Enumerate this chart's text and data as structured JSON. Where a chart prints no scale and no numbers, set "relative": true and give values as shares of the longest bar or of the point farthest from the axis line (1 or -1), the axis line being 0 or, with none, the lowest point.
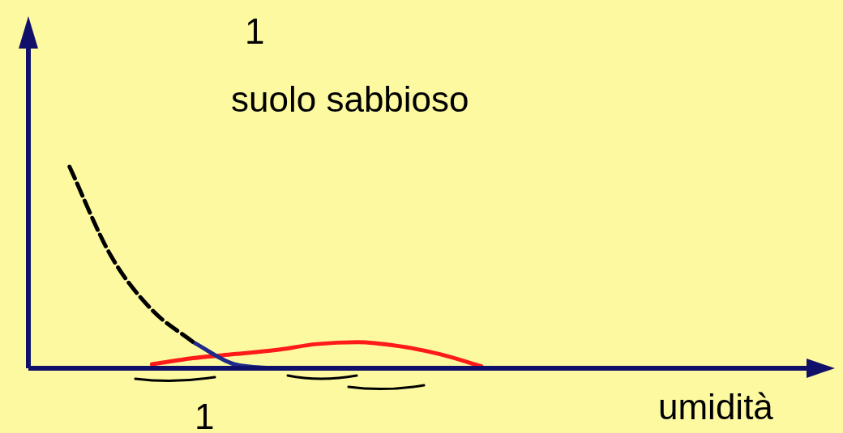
{
  "chart_data": {
    "type": "line",
    "title": "suolo sabbioso",
    "xlabel": "umidità",
    "relative": true,
    "grid": false,
    "legend": false,
    "marker": "none",
    "annotations": [
      "1",
      "1"
    ],
    "categories": [
      null,
      null,
      null,
      null,
      null,
      null,
      null,
      null,
      null,
      null,
      null,
      null,
      null,
      null,
      null,
      null,
      null,
      null,
      null,
      null
    ],
    "series": [
      {
        "color": "#000000",
        "line_style": "dashed",
        "values": [
          null,
          1.0,
          0.56,
          0.29,
          0.13,
          null,
          null,
          null,
          null,
          null,
          null,
          null,
          null,
          null,
          null,
          null,
          null,
          null,
          null,
          null
        ]
      },
      {
        "color": "#1f2a8a",
        "line_style": "solid",
        "values": [
          null,
          null,
          null,
          null,
          0.13,
          0.02,
          0,
          null,
          null,
          null,
          null,
          null,
          null,
          null,
          null,
          null,
          null,
          null,
          null,
          null
        ]
      },
      {
        "color": "#ff1a1a",
        "line_style": "solid",
        "values": [
          null,
          null,
          null,
          0.02,
          0.05,
          0.07,
          0.09,
          0.12,
          0.13,
          0.11,
          0.07,
          0.01,
          null,
          null,
          null,
          null,
          null,
          null,
          null,
          null
        ]
      }
    ]
  }
}
